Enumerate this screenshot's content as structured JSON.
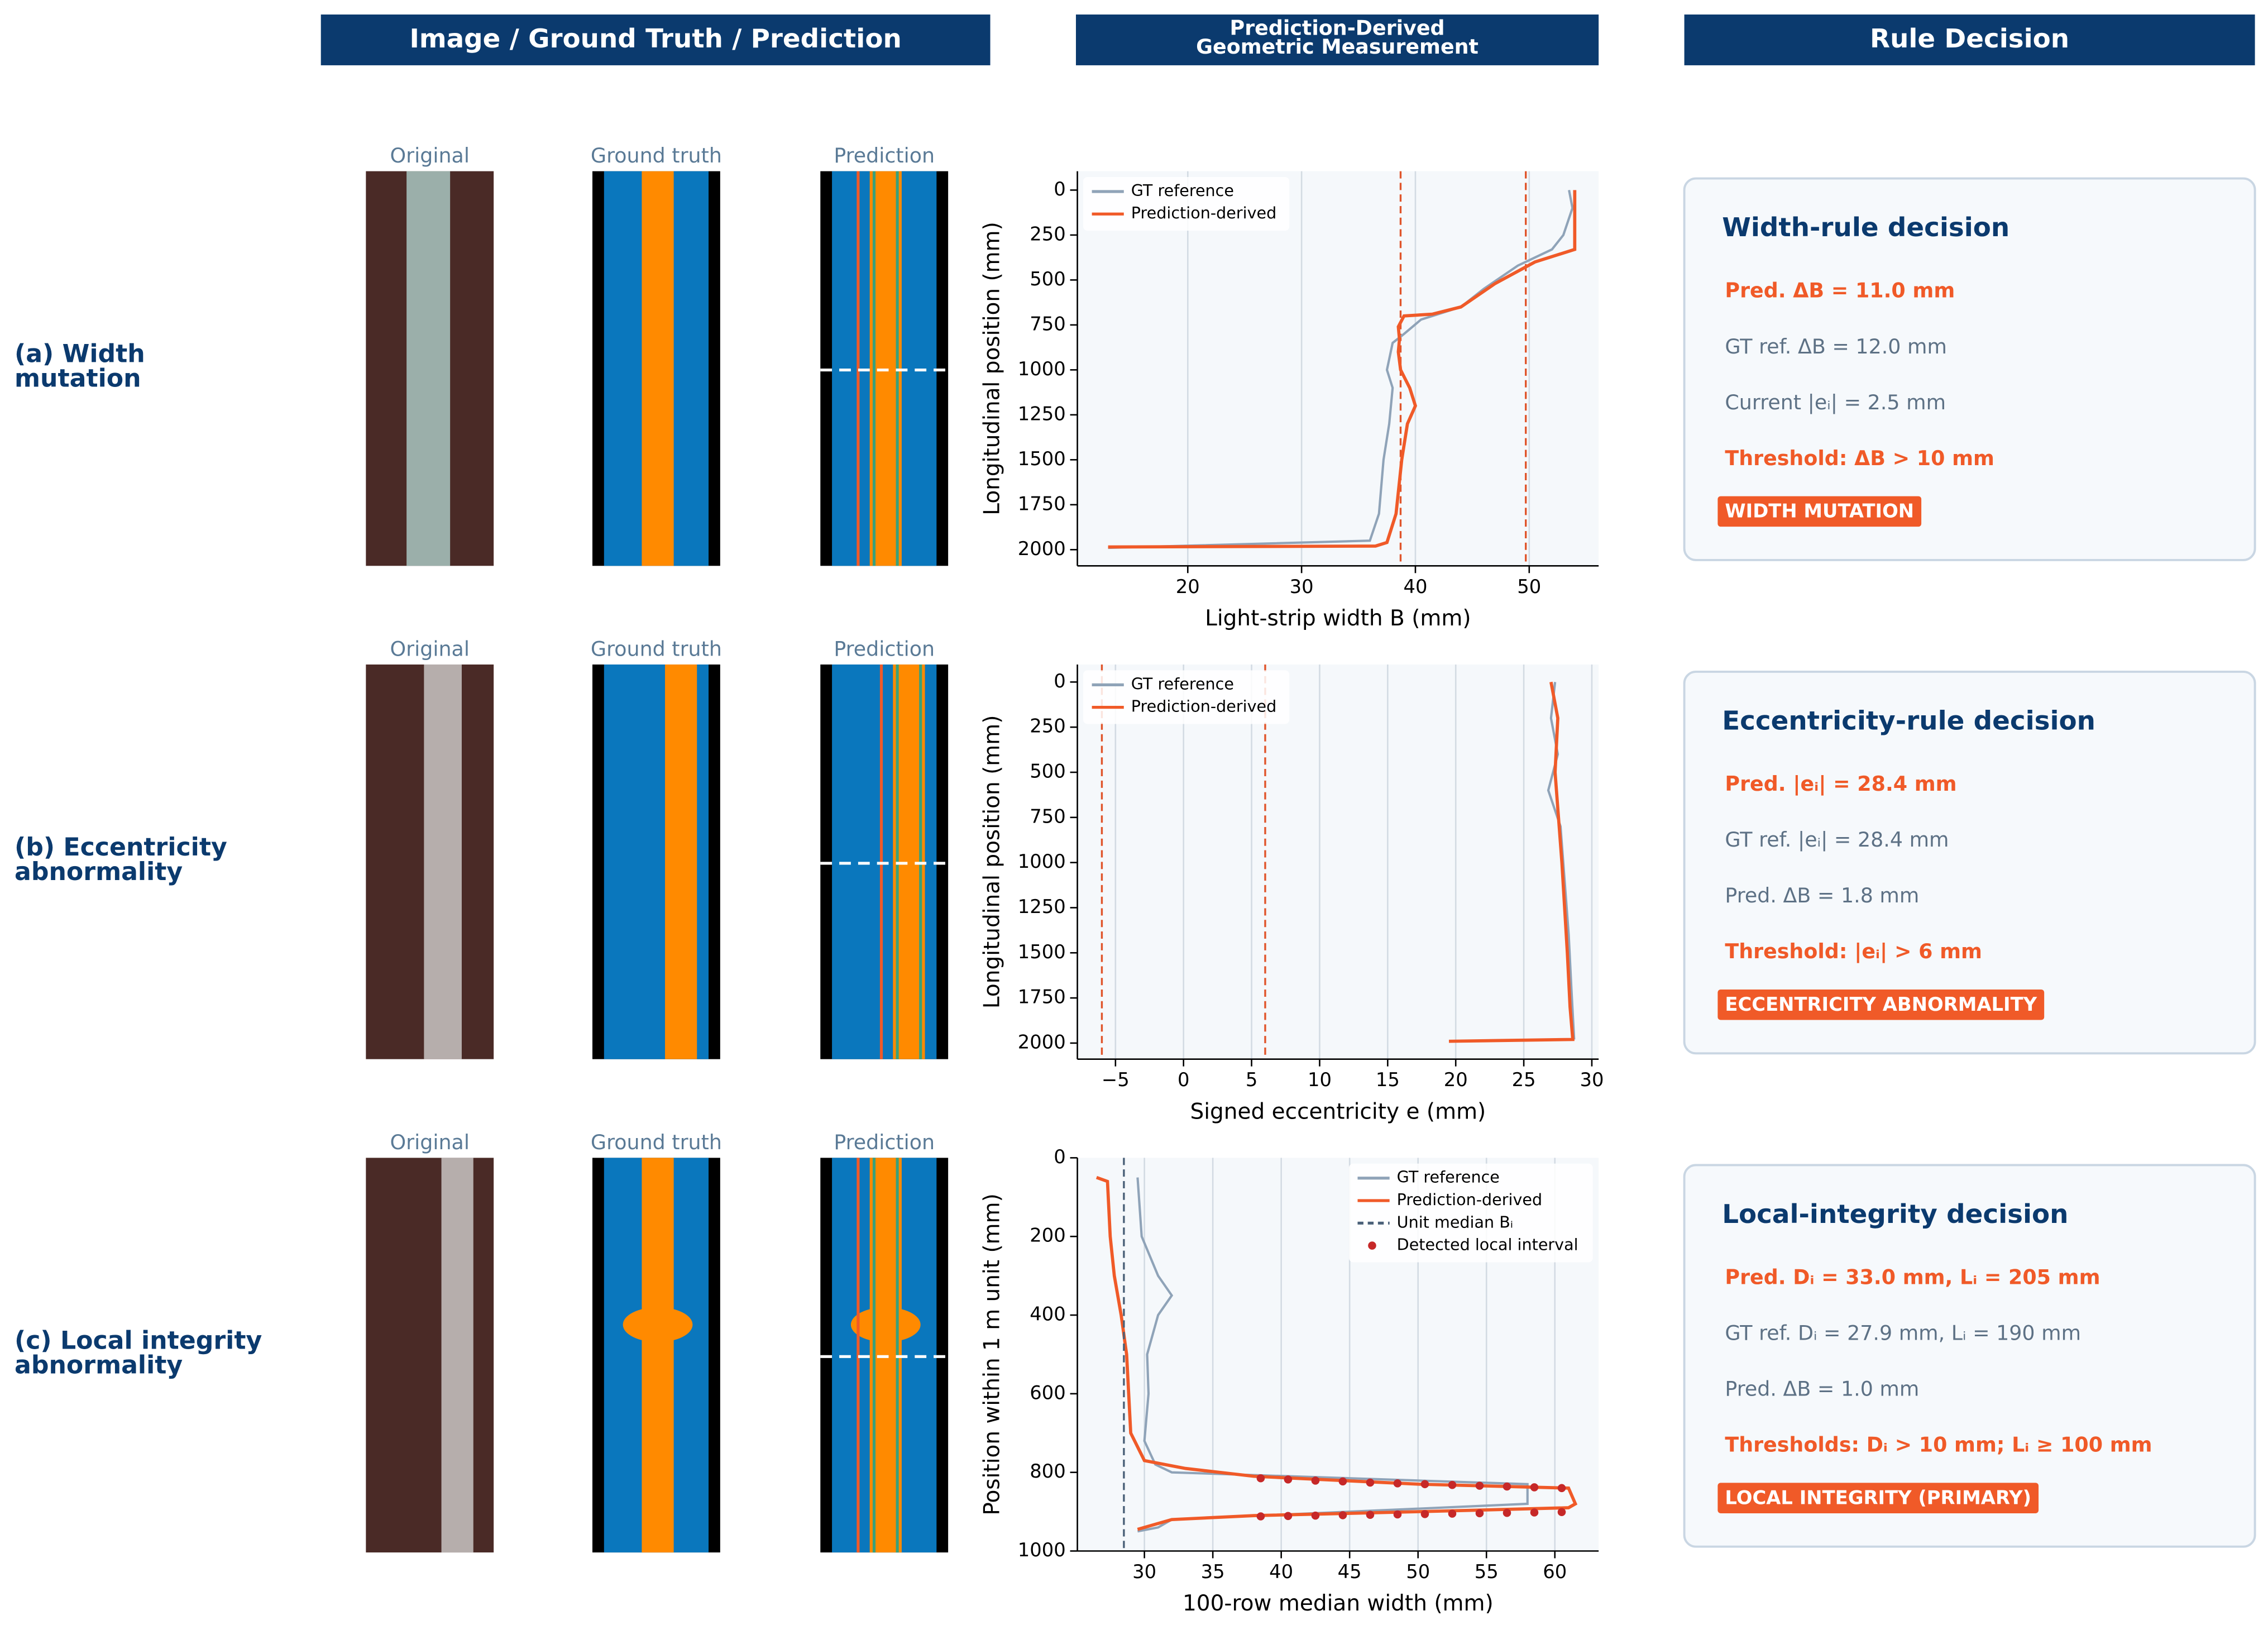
{
  "headers": {
    "images": "Image / Ground Truth / Prediction",
    "measurement": [
      "Prediction-Derived",
      "Geometric Measurement"
    ],
    "decision": "Rule Decision"
  },
  "rows": [
    {
      "label": [
        "(a) Width",
        "mutation"
      ],
      "panels": [
        "Original",
        "Ground truth",
        "Prediction"
      ],
      "decision": {
        "title": "Width-rule decision",
        "lines": [
          {
            "text": "Pred. ΔB = 11.0 mm",
            "color": "#f05a28"
          },
          {
            "text": "GT ref. ΔB = 12.0 mm",
            "color": "#5d7185"
          },
          {
            "text": "Current |eᵢ| = 2.5 mm",
            "color": "#5d7185"
          },
          {
            "text": "Threshold: ΔB > 10 mm",
            "color": "#f05a28"
          }
        ],
        "badge": "WIDTH MUTATION"
      }
    },
    {
      "label": [
        "(b) Eccentricity",
        "abnormality"
      ],
      "panels": [
        "Original",
        "Ground truth",
        "Prediction"
      ],
      "decision": {
        "title": "Eccentricity-rule decision",
        "lines": [
          {
            "text": "Pred. |eᵢ| = 28.4 mm",
            "color": "#f05a28"
          },
          {
            "text": "GT ref. |eᵢ| = 28.4 mm",
            "color": "#5d7185"
          },
          {
            "text": "Pred. ΔB = 1.8 mm",
            "color": "#5d7185"
          },
          {
            "text": "Threshold: |eᵢ| > 6 mm",
            "color": "#f05a28"
          }
        ],
        "badge": "ECCENTRICITY ABNORMALITY"
      }
    },
    {
      "label": [
        "(c) Local integrity",
        "abnormality"
      ],
      "panels": [
        "Original",
        "Ground truth",
        "Prediction"
      ],
      "decision": {
        "title": "Local-integrity decision",
        "lines": [
          {
            "text": "Pred. Dᵢ = 33.0 mm, Lᵢ = 205 mm",
            "color": "#f05a28"
          },
          {
            "text": "GT ref. Dᵢ = 27.9 mm, Lᵢ = 190 mm",
            "color": "#5d7185"
          },
          {
            "text": "Pred. ΔB = 1.0 mm",
            "color": "#5d7185"
          },
          {
            "text": "Thresholds: Dᵢ > 10 mm; Lᵢ ≥ 100 mm",
            "color": "#f05a28"
          }
        ],
        "badge": "LOCAL INTEGRITY (PRIMARY)"
      }
    }
  ],
  "chart_data": [
    {
      "type": "line",
      "xlabel": "Light-strip width B (mm)",
      "ylabel": "Longitudinal position (mm)",
      "xlim": [
        10.3,
        56.1
      ],
      "ylim": [
        2090,
        -105
      ],
      "xticks": [
        20,
        30,
        40,
        50
      ],
      "yticks": [
        0,
        250,
        500,
        750,
        1000,
        1250,
        1500,
        1750,
        2000
      ],
      "grid": "x",
      "legend": "upper left",
      "vlines": [
        38.7,
        49.7
      ],
      "vline_color": "#e0552b",
      "series": [
        {
          "name": "GT reference",
          "color": "#8fa3b8",
          "kind": "line",
          "x": [
            53.5,
            53.8,
            53,
            52,
            49,
            46,
            44,
            40.5,
            39,
            38,
            37.5,
            38,
            37.7,
            37.2,
            36.8,
            36,
            13
          ],
          "y": [
            0,
            100,
            250,
            330,
            420,
            550,
            650,
            720,
            800,
            850,
            1000,
            1100,
            1300,
            1500,
            1800,
            1950,
            1990
          ]
        },
        {
          "name": "Prediction-derived",
          "color": "#f05a28",
          "kind": "line",
          "x": [
            54,
            54,
            50.5,
            47,
            44,
            41.5,
            39,
            38.5,
            38.6,
            38.5,
            38.7,
            39.5,
            40,
            39.3,
            38.8,
            38.3,
            37.5,
            36.5,
            13
          ],
          "y": [
            0,
            330,
            400,
            520,
            650,
            690,
            700,
            760,
            830,
            900,
            1000,
            1100,
            1200,
            1300,
            1500,
            1800,
            1960,
            1980,
            1985
          ]
        }
      ]
    },
    {
      "type": "line",
      "xlabel": "Signed eccentricity e (mm)",
      "ylabel": "Longitudinal position (mm)",
      "xlim": [
        -7.8,
        30.5
      ],
      "ylim": [
        2089,
        -97
      ],
      "xticks": [
        {
          "value": -5,
          "label": "−5"
        },
        0,
        5,
        10,
        15,
        20,
        25,
        30
      ],
      "yticks": [
        0,
        250,
        500,
        750,
        1000,
        1250,
        1500,
        1750,
        2000
      ],
      "grid": "x",
      "legend": "upper left",
      "vlines": [
        -6,
        6
      ],
      "vline_color": "#e0552b",
      "series": [
        {
          "name": "GT reference",
          "color": "#8fa3b8",
          "kind": "line",
          "x": [
            27.3,
            27,
            27.5,
            26.8,
            27.7,
            28,
            28.3,
            28.5,
            28.7
          ],
          "y": [
            0,
            200,
            400,
            600,
            800,
            1100,
            1400,
            1700,
            1980
          ]
        },
        {
          "name": "Prediction-derived",
          "color": "#f05a28",
          "kind": "line",
          "x": [
            27,
            27.5,
            27.3,
            27.8,
            28.2,
            28.4,
            28.6,
            19.5
          ],
          "y": [
            0,
            200,
            500,
            1000,
            1500,
            1800,
            1980,
            1990
          ]
        }
      ]
    },
    {
      "type": "line",
      "xlabel": "100-row median width (mm)",
      "ylabel": "Position within 1 m unit (mm)",
      "xlim": [
        25.1,
        63.2
      ],
      "ylim": [
        1000,
        0
      ],
      "xticks": [
        30,
        35,
        40,
        45,
        50,
        55,
        60
      ],
      "yticks": [
        0,
        200,
        400,
        600,
        800,
        1000
      ],
      "grid": "x",
      "legend": "upper right",
      "series": [
        {
          "name": "GT reference",
          "color": "#8fa3b8",
          "kind": "line",
          "x": [
            29.5,
            29.8,
            31,
            32,
            31,
            30.2,
            30.3,
            30,
            30.8,
            32,
            58,
            58,
            32,
            31,
            29.5
          ],
          "y": [
            50,
            200,
            300,
            350,
            400,
            500,
            600,
            720,
            780,
            800,
            830,
            880,
            920,
            940,
            950
          ]
        },
        {
          "name": "Prediction-derived",
          "color": "#f05a28",
          "kind": "line",
          "x": [
            26.5,
            27.3,
            27.5,
            27.8,
            28.3,
            28.7,
            29,
            30,
            33,
            38,
            50,
            61,
            61.5,
            61,
            50,
            38,
            32,
            29.5
          ],
          "y": [
            50,
            60,
            200,
            300,
            400,
            500,
            700,
            770,
            790,
            810,
            830,
            840,
            880,
            890,
            900,
            910,
            920,
            945
          ]
        },
        {
          "name": "Unit median Bᵢ",
          "color": "#4a6078",
          "kind": "vline",
          "value": 28.5
        },
        {
          "name": "Detected local interval",
          "color": "#c62828",
          "kind": "scatter",
          "x": [
            38.5,
            40.5,
            42.5,
            44.5,
            46.5,
            48.5,
            50.5,
            52.5,
            54.5,
            56.5,
            58.5,
            60.5,
            38.5,
            40.5,
            42.5,
            44.5,
            46.5,
            48.5,
            50.5,
            52.5,
            54.5,
            56.5,
            58.5,
            60.5
          ],
          "y": [
            815,
            818,
            821,
            823,
            826,
            828,
            830,
            832,
            834,
            836,
            838,
            840,
            912,
            911,
            910,
            909,
            908,
            907,
            906,
            905,
            904,
            903,
            902,
            901
          ]
        }
      ]
    }
  ]
}
